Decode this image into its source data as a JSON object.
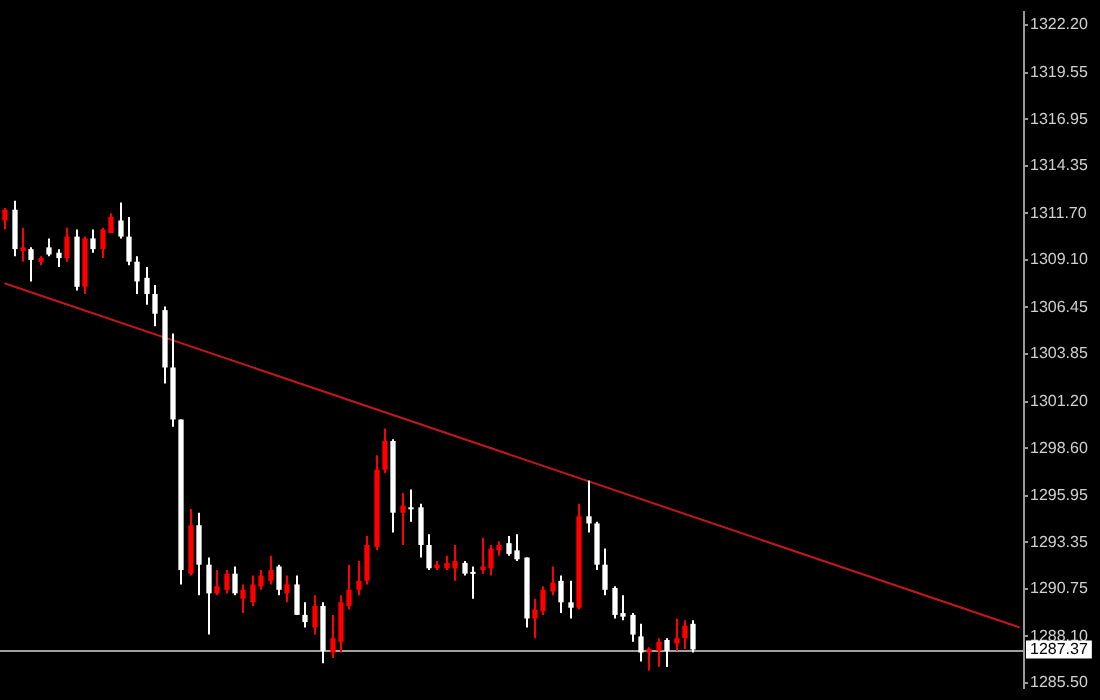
{
  "chart_data": {
    "type": "candlestick",
    "categories": [
      null,
      null,
      null,
      null,
      null,
      null,
      null,
      null,
      null,
      null,
      null,
      null,
      null,
      null,
      null,
      null,
      null,
      null,
      null,
      null,
      null,
      null,
      null,
      null,
      null,
      null,
      null,
      null,
      null,
      null,
      null,
      null,
      null,
      null,
      null,
      null,
      null,
      null,
      null,
      null,
      null,
      null,
      null,
      null,
      null,
      null,
      null,
      null,
      null,
      null,
      null,
      null,
      null,
      null,
      null,
      null,
      null,
      null,
      null,
      null,
      null,
      null,
      null,
      null,
      null,
      null,
      null,
      null,
      null,
      null,
      null,
      null,
      null,
      null,
      null,
      null,
      null,
      null,
      null,
      null,
      null,
      null,
      null,
      null,
      null,
      null,
      null,
      null,
      null,
      null,
      null,
      null,
      null,
      null,
      null,
      null,
      null,
      null,
      null,
      null,
      null,
      null,
      null,
      null,
      null,
      null,
      null,
      null,
      null,
      null,
      null,
      null,
      null,
      null,
      null,
      null
    ],
    "ohlc": [
      [
        1311.3,
        1312.0,
        1310.8,
        1311.9
      ],
      [
        1311.9,
        1312.4,
        1309.3,
        1309.7
      ],
      [
        1309.6,
        1310.9,
        1309.0,
        1309.8
      ],
      [
        1309.7,
        1309.8,
        1307.9,
        1309.1
      ],
      [
        1309.0,
        1309.3,
        1308.8,
        1309.2
      ],
      [
        1309.8,
        1310.3,
        1309.3,
        1309.4
      ],
      [
        1309.5,
        1309.7,
        1308.7,
        1309.2
      ],
      [
        1309.2,
        1310.9,
        1309.0,
        1310.4
      ],
      [
        1310.4,
        1310.8,
        1307.4,
        1307.6
      ],
      [
        1307.6,
        1310.4,
        1307.2,
        1310.3
      ],
      [
        1310.3,
        1310.8,
        1309.5,
        1309.7
      ],
      [
        1309.7,
        1310.9,
        1309.2,
        1310.8
      ],
      [
        1310.6,
        1311.7,
        1310.6,
        1311.5
      ],
      [
        1311.3,
        1312.3,
        1310.3,
        1310.4
      ],
      [
        1310.4,
        1311.5,
        1308.8,
        1309.0
      ],
      [
        1309.0,
        1309.3,
        1307.2,
        1307.9
      ],
      [
        1308.1,
        1308.7,
        1306.6,
        1307.2
      ],
      [
        1307.2,
        1307.7,
        1305.4,
        1306.1
      ],
      [
        1306.3,
        1306.5,
        1302.2,
        1303.1
      ],
      [
        1303.1,
        1305.0,
        1299.8,
        1300.2
      ],
      [
        1300.2,
        1300.2,
        1291.0,
        1291.8
      ],
      [
        1291.6,
        1295.2,
        1291.5,
        1294.3
      ],
      [
        1294.3,
        1295.0,
        1290.4,
        1292.1
      ],
      [
        1292.1,
        1292.5,
        1288.2,
        1290.5
      ],
      [
        1290.5,
        1291.8,
        1290.4,
        1290.9
      ],
      [
        1290.7,
        1291.8,
        1290.5,
        1291.6
      ],
      [
        1291.6,
        1292.0,
        1290.4,
        1290.5
      ],
      [
        1290.2,
        1291.0,
        1289.4,
        1290.7
      ],
      [
        1290.0,
        1291.5,
        1289.8,
        1291.0
      ],
      [
        1290.9,
        1291.8,
        1290.7,
        1291.5
      ],
      [
        1291.2,
        1292.6,
        1291.0,
        1291.8
      ],
      [
        1292.0,
        1292.1,
        1290.4,
        1290.7
      ],
      [
        1290.5,
        1291.5,
        1290.0,
        1291.0
      ],
      [
        1291.0,
        1291.5,
        1289.3,
        1289.3
      ],
      [
        1289.3,
        1290.0,
        1288.6,
        1288.9
      ],
      [
        1288.6,
        1290.4,
        1288.2,
        1289.8
      ],
      [
        1289.8,
        1290.0,
        1286.6,
        1287.3
      ],
      [
        1287.2,
        1289.3,
        1286.9,
        1288.0
      ],
      [
        1287.8,
        1290.4,
        1287.2,
        1290.0
      ],
      [
        1289.8,
        1292.1,
        1289.6,
        1290.7
      ],
      [
        1290.7,
        1292.3,
        1290.4,
        1291.2
      ],
      [
        1291.2,
        1293.7,
        1291.0,
        1293.2
      ],
      [
        1293.1,
        1298.2,
        1292.9,
        1297.4
      ],
      [
        1297.4,
        1299.7,
        1297.2,
        1299.0
      ],
      [
        1299.0,
        1299.1,
        1293.9,
        1295.0
      ],
      [
        1295.0,
        1296.1,
        1293.2,
        1295.4
      ],
      [
        1295.3,
        1296.3,
        1294.5,
        1295.2
      ],
      [
        1295.3,
        1295.5,
        1292.5,
        1293.2
      ],
      [
        1293.2,
        1293.8,
        1291.8,
        1291.9
      ],
      [
        1291.9,
        1292.3,
        1291.8,
        1292.1
      ],
      [
        1291.9,
        1292.6,
        1291.8,
        1292.2
      ],
      [
        1291.9,
        1293.2,
        1291.2,
        1292.3
      ],
      [
        1292.2,
        1292.3,
        1291.5,
        1291.6
      ],
      [
        1291.7,
        1292.0,
        1290.2,
        1291.6
      ],
      [
        1291.8,
        1293.6,
        1291.6,
        1292.0
      ],
      [
        1291.9,
        1293.2,
        1291.5,
        1293.0
      ],
      [
        1292.9,
        1293.4,
        1292.6,
        1293.2
      ],
      [
        1293.3,
        1293.7,
        1292.6,
        1292.7
      ],
      [
        1292.9,
        1293.8,
        1292.3,
        1292.4
      ],
      [
        1292.5,
        1292.5,
        1288.6,
        1289.1
      ],
      [
        1289.1,
        1290.2,
        1288.0,
        1289.6
      ],
      [
        1289.5,
        1290.9,
        1289.3,
        1290.7
      ],
      [
        1290.6,
        1292.0,
        1290.4,
        1291.1
      ],
      [
        1291.2,
        1291.5,
        1289.4,
        1290.0
      ],
      [
        1290.0,
        1291.2,
        1289.1,
        1289.7
      ],
      [
        1289.7,
        1295.5,
        1289.6,
        1294.8
      ],
      [
        1294.8,
        1296.8,
        1293.9,
        1294.4
      ],
      [
        1294.4,
        1294.5,
        1291.8,
        1292.1
      ],
      [
        1292.1,
        1293.0,
        1290.4,
        1290.7
      ],
      [
        1290.8,
        1290.9,
        1289.1,
        1289.3
      ],
      [
        1289.4,
        1290.4,
        1289.0,
        1289.2
      ],
      [
        1289.3,
        1289.4,
        1287.8,
        1288.2
      ],
      [
        1288.1,
        1288.8,
        1286.7,
        1287.2
      ],
      [
        1287.2,
        1287.5,
        1286.2,
        1287.4
      ],
      [
        1287.3,
        1288.0,
        1286.4,
        1287.8
      ],
      [
        1287.9,
        1288.0,
        1286.4,
        1287.3
      ],
      [
        1287.7,
        1289.1,
        1287.3,
        1288.0
      ],
      [
        1288.0,
        1289.0,
        1287.4,
        1288.7
      ],
      [
        1288.8,
        1289.0,
        1287.2,
        1287.37
      ],
      null,
      null,
      null,
      null,
      null,
      null,
      null,
      null,
      null,
      null,
      null,
      null,
      null,
      null,
      null,
      null,
      null,
      null,
      null,
      null,
      null,
      null,
      null,
      null,
      null,
      null,
      null,
      null,
      null,
      null,
      null,
      null,
      null,
      null,
      null,
      null,
      null
    ],
    "colors": [
      "#ff0000",
      "#ffffff",
      "#ff0000",
      "#ffffff",
      "#ff0000",
      "#ffffff",
      "#ffffff",
      "#ff0000",
      "#ffffff",
      "#ff0000",
      "#ffffff",
      "#ff0000",
      "#ff0000",
      "#ffffff",
      "#ffffff",
      "#ffffff",
      "#ffffff",
      "#ffffff",
      "#ffffff",
      "#ffffff",
      "#ffffff",
      "#ff0000",
      "#ffffff",
      "#ffffff",
      "#ff0000",
      "#ff0000",
      "#ffffff",
      "#ff0000",
      "#ff0000",
      "#ff0000",
      "#ff0000",
      "#ffffff",
      "#ff0000",
      "#ffffff",
      "#ffffff",
      "#ff0000",
      "#ffffff",
      "#ff0000",
      "#ff0000",
      "#ff0000",
      "#ff0000",
      "#ff0000",
      "#ff0000",
      "#ff0000",
      "#ffffff",
      "#ff0000",
      "#ffffff",
      "#ffffff",
      "#ffffff",
      "#ff0000",
      "#ff0000",
      "#ff0000",
      "#ffffff",
      "#ffffff",
      "#ff0000",
      "#ff0000",
      "#ff0000",
      "#ffffff",
      "#ffffff",
      "#ffffff",
      "#ff0000",
      "#ff0000",
      "#ff0000",
      "#ffffff",
      "#ffffff",
      "#ff0000",
      "#ffffff",
      "#ffffff",
      "#ffffff",
      "#ffffff",
      "#ffffff",
      "#ffffff",
      "#ffffff",
      "#ff0000",
      "#ff0000",
      "#ffffff",
      "#ff0000",
      "#ff0000",
      "#ffffff",
      null,
      null,
      null,
      null,
      null,
      null,
      null,
      null,
      null,
      null,
      null,
      null,
      null,
      null,
      null,
      null,
      null,
      null,
      null,
      null,
      null,
      null,
      null,
      null,
      null,
      null,
      null,
      null,
      null,
      null,
      null,
      null,
      null,
      null,
      null,
      null,
      null
    ],
    "series": [
      {
        "type": "line",
        "color": "#c0181c",
        "values": [
          1307.8,
          null,
          null,
          null,
          null,
          null,
          null,
          null,
          null,
          null,
          null,
          null,
          null,
          null,
          null,
          null,
          null,
          null,
          null,
          null,
          null,
          null,
          null,
          null,
          null,
          null,
          null,
          null,
          null,
          null,
          null,
          null,
          null,
          null,
          null,
          null,
          null,
          null,
          null,
          null,
          null,
          null,
          null,
          null,
          null,
          null,
          null,
          null,
          null,
          null,
          null,
          null,
          null,
          null,
          null,
          null,
          null,
          null,
          null,
          null,
          null,
          null,
          null,
          null,
          null,
          null,
          null,
          null,
          null,
          null,
          null,
          null,
          null,
          null,
          null,
          null,
          null,
          null,
          null,
          null,
          null,
          null,
          null,
          null,
          null,
          null,
          null,
          null,
          null,
          null,
          null,
          null,
          null,
          null,
          null,
          null,
          null,
          null,
          null,
          null,
          null,
          null,
          null,
          null,
          null,
          null,
          null,
          null,
          null,
          null,
          null,
          null,
          null,
          null,
          null,
          1288.6
        ]
      }
    ],
    "ref_lines": [
      {
        "axis": "y",
        "value": 1287.37,
        "label": "1287.37",
        "color": "#a0a0a0"
      }
    ],
    "ylim": [
      1285.2,
      1322.95
    ],
    "yticks": [
      {
        "value": 1322.2,
        "label": "1322.20"
      },
      1319.55,
      1316.95,
      1314.35,
      {
        "value": 1311.7,
        "label": "1311.70"
      },
      {
        "value": 1309.1,
        "label": "1309.10"
      },
      1306.45,
      1303.85,
      {
        "value": 1301.2,
        "label": "1301.20"
      },
      {
        "value": 1298.6,
        "label": "1298.60"
      },
      1295.95,
      1293.35,
      1290.75,
      {
        "value": 1288.1,
        "label": "1288.10"
      },
      {
        "value": 1285.5,
        "label": "1285.50"
      }
    ],
    "grid": false
  }
}
